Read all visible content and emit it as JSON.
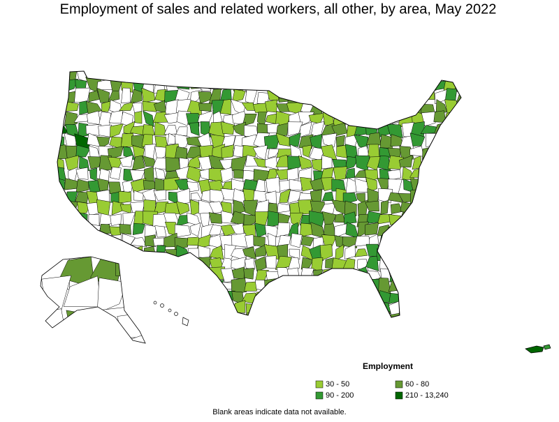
{
  "title": "Employment of sales and related workers, all other, by area, May 2022",
  "legend": {
    "title": "Employment",
    "items": [
      {
        "label": "30 - 50",
        "color": "#99cc33"
      },
      {
        "label": "60 - 80",
        "color": "#669933"
      },
      {
        "label": "90 - 200",
        "color": "#339933"
      },
      {
        "label": "210 - 13,240",
        "color": "#006600"
      }
    ]
  },
  "footnote": "Blank areas indicate data not available."
}
